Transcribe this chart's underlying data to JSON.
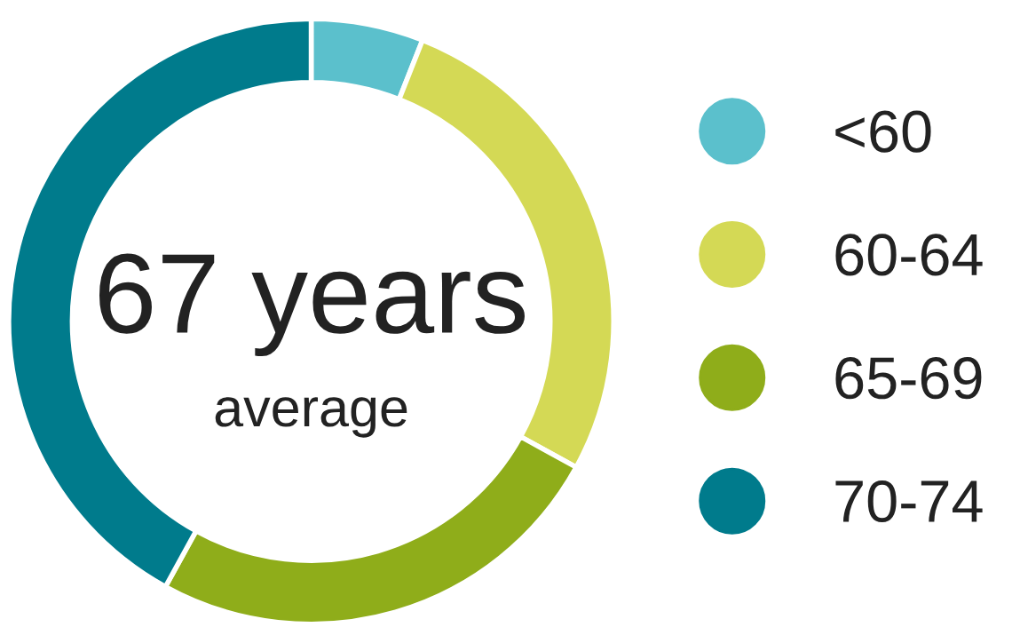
{
  "chart_data": {
    "type": "donut",
    "categories": [
      "<60",
      "60-64",
      "65-69",
      "70-74"
    ],
    "values": [
      6,
      27,
      25,
      42
    ],
    "colors": [
      "#5bc0cc",
      "#d4d955",
      "#8fad1a",
      "#007b8c"
    ],
    "annotations": [
      "67 years",
      "average"
    ],
    "legend": "right"
  }
}
